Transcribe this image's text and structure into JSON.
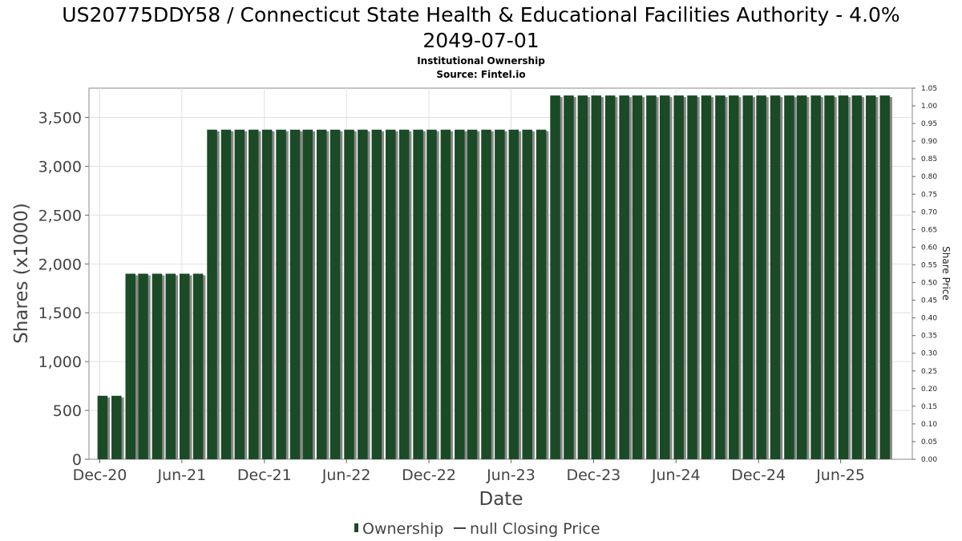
{
  "title_line1": "US20775DDY58 / Connecticut State Health & Educational Facilities Authority - 4.0%",
  "title_line2": "2049-07-01",
  "subtitle_line1": "Institutional Ownership",
  "subtitle_line2": "Source: Fintel.io",
  "colors": {
    "bar": "#1b4a26",
    "bar_shadow": "#888888",
    "grid": "#e0e0e0",
    "frame": "#888888"
  },
  "chart_data": {
    "type": "bar",
    "xlabel": "Date",
    "ylabel": "Shares (x1000)",
    "y2label": "Share Price",
    "ylim": [
      0,
      3800
    ],
    "y2lim": [
      0,
      1.05
    ],
    "xlim": [
      "2020-11-07",
      "2025-11-07"
    ],
    "yticks": [
      0,
      500,
      1000,
      1500,
      2000,
      2500,
      3000,
      3500
    ],
    "ytick_labels": [
      "0",
      "500",
      "1,000",
      "1,500",
      "2,000",
      "2,500",
      "3,000",
      "3,500"
    ],
    "y2ticks": [
      "0.00",
      "0.05",
      "0.10",
      "0.15",
      "0.20",
      "0.25",
      "0.30",
      "0.35",
      "0.40",
      "0.45",
      "0.50",
      "0.55",
      "0.60",
      "0.65",
      "0.70",
      "0.75",
      "0.80",
      "0.85",
      "0.90",
      "0.95",
      "1.00",
      "1.05"
    ],
    "xticks": [
      {
        "date": "2020-12-01",
        "label": "Dec-20"
      },
      {
        "date": "2021-06-01",
        "label": "Jun-21"
      },
      {
        "date": "2021-12-01",
        "label": "Dec-21"
      },
      {
        "date": "2022-06-01",
        "label": "Jun-22"
      },
      {
        "date": "2022-12-01",
        "label": "Dec-22"
      },
      {
        "date": "2023-06-01",
        "label": "Jun-23"
      },
      {
        "date": "2023-12-01",
        "label": "Dec-23"
      },
      {
        "date": "2024-06-01",
        "label": "Jun-24"
      },
      {
        "date": "2024-12-01",
        "label": "Dec-24"
      },
      {
        "date": "2025-06-01",
        "label": "Jun-25"
      }
    ],
    "grid": true,
    "legend": "bottom-center",
    "series": [
      {
        "name": "Ownership",
        "type": "bar",
        "dates": [
          "2020-12-07",
          "2021-01-07",
          "2021-02-07",
          "2021-03-07",
          "2021-04-07",
          "2021-05-07",
          "2021-06-07",
          "2021-07-07",
          "2021-08-07",
          "2021-09-07",
          "2021-10-07",
          "2021-11-07",
          "2021-12-07",
          "2022-01-07",
          "2022-02-07",
          "2022-03-07",
          "2022-04-07",
          "2022-05-07",
          "2022-06-07",
          "2022-07-07",
          "2022-08-07",
          "2022-09-07",
          "2022-10-07",
          "2022-11-07",
          "2022-12-07",
          "2023-01-07",
          "2023-02-07",
          "2023-03-07",
          "2023-04-07",
          "2023-05-07",
          "2023-06-07",
          "2023-07-07",
          "2023-08-07",
          "2023-09-07",
          "2023-10-07",
          "2023-11-07",
          "2023-12-07",
          "2024-01-07",
          "2024-02-07",
          "2024-03-07",
          "2024-04-07",
          "2024-05-07",
          "2024-06-07",
          "2024-07-07",
          "2024-08-07",
          "2024-09-07",
          "2024-10-07",
          "2024-11-07",
          "2024-12-07",
          "2025-01-07",
          "2025-02-07",
          "2025-03-07",
          "2025-04-07",
          "2025-05-07",
          "2025-06-07",
          "2025-07-07",
          "2025-08-07",
          "2025-09-07"
        ],
        "values": [
          650,
          650,
          1900,
          1900,
          1900,
          1900,
          1900,
          1900,
          3375,
          3375,
          3375,
          3375,
          3375,
          3375,
          3375,
          3375,
          3375,
          3375,
          3375,
          3375,
          3375,
          3375,
          3375,
          3375,
          3375,
          3375,
          3375,
          3375,
          3375,
          3375,
          3375,
          3375,
          3375,
          3725,
          3725,
          3725,
          3725,
          3725,
          3725,
          3725,
          3725,
          3725,
          3725,
          3725,
          3725,
          3725,
          3725,
          3725,
          3725,
          3725,
          3725,
          3725,
          3725,
          3725,
          3725,
          3725,
          3725,
          3725
        ]
      },
      {
        "name": "null Closing Price",
        "type": "line",
        "values": []
      }
    ]
  }
}
